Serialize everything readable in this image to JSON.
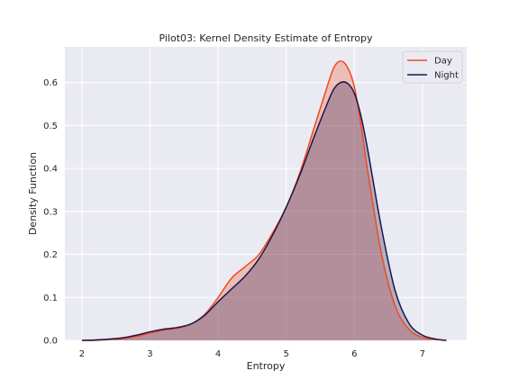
{
  "chart_data": {
    "type": "area",
    "title": "Pilot03: Kernel Density Estimate of Entropy",
    "xlabel": "Entropy",
    "ylabel": "Density Function",
    "xlim": [
      1.75,
      7.65
    ],
    "ylim": [
      0,
      0.683
    ],
    "xticks": [
      2,
      3,
      4,
      5,
      6,
      7
    ],
    "yticks": [
      0.0,
      0.1,
      0.2,
      0.3,
      0.4,
      0.5,
      0.6
    ],
    "grid": true,
    "legend_position": "top-right",
    "series": [
      {
        "name": "Day",
        "color": "#ef4b1f",
        "fill": "#e8a49b",
        "x": [
          2.0,
          2.2,
          2.4,
          2.6,
          2.8,
          3.0,
          3.2,
          3.4,
          3.6,
          3.8,
          4.0,
          4.2,
          4.4,
          4.6,
          4.8,
          5.0,
          5.2,
          5.4,
          5.6,
          5.7,
          5.8,
          5.9,
          6.0,
          6.1,
          6.2,
          6.4,
          6.6,
          6.8,
          7.0,
          7.2,
          7.35
        ],
        "y": [
          0.0,
          0.0,
          0.002,
          0.004,
          0.009,
          0.017,
          0.024,
          0.028,
          0.038,
          0.06,
          0.1,
          0.145,
          0.172,
          0.2,
          0.25,
          0.31,
          0.39,
          0.49,
          0.59,
          0.635,
          0.65,
          0.635,
          0.59,
          0.5,
          0.39,
          0.2,
          0.08,
          0.026,
          0.007,
          0.002,
          0.0
        ]
      },
      {
        "name": "Night",
        "color": "#1b174f",
        "fill": "#a88d99",
        "x": [
          2.0,
          2.2,
          2.4,
          2.6,
          2.8,
          3.0,
          3.2,
          3.4,
          3.6,
          3.8,
          4.0,
          4.2,
          4.4,
          4.6,
          4.8,
          5.0,
          5.2,
          5.4,
          5.6,
          5.7,
          5.8,
          5.9,
          6.0,
          6.1,
          6.2,
          6.4,
          6.6,
          6.8,
          7.0,
          7.2,
          7.35
        ],
        "y": [
          0.0,
          0.001,
          0.003,
          0.006,
          0.012,
          0.02,
          0.026,
          0.03,
          0.038,
          0.058,
          0.09,
          0.12,
          0.15,
          0.19,
          0.245,
          0.31,
          0.385,
          0.47,
          0.55,
          0.585,
          0.6,
          0.598,
          0.575,
          0.52,
          0.44,
          0.26,
          0.115,
          0.04,
          0.012,
          0.003,
          0.0
        ]
      }
    ]
  },
  "colors": {
    "plot_background": "#eaeaf2",
    "grid": "#ffffff",
    "text": "#262626"
  }
}
